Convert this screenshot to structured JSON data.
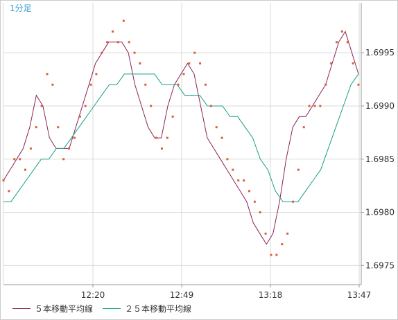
{
  "timeframe_label": "1分足",
  "colors": {
    "ma5": "#8b2252",
    "ma25": "#16a085",
    "points": "#d9603b",
    "grid": "#d9d9d9",
    "axis": "#999999"
  },
  "chart_data": {
    "type": "line",
    "title": "",
    "xlabel": "",
    "ylabel": "",
    "grid": true,
    "legend": "bottom-left",
    "x_ticks": [
      "12:20",
      "12:49",
      "13:18",
      "13:47"
    ],
    "y_ticks": [
      "1.6975",
      "1.6980",
      "1.6985",
      "1.6990",
      "1.6995"
    ],
    "ylim": [
      1.69732,
      1.69997
    ],
    "series": [
      {
        "name": "５本移動平均線",
        "style": "line",
        "color": "#8b2252",
        "values": [
          1.6983,
          1.6984,
          1.6985,
          1.6986,
          1.6988,
          1.6991,
          1.699,
          1.6987,
          1.6986,
          1.6986,
          1.6986,
          1.6988,
          1.699,
          1.6992,
          1.6994,
          1.6995,
          1.6996,
          1.6996,
          1.6996,
          1.6995,
          1.6992,
          1.699,
          1.6988,
          1.6987,
          1.6987,
          1.699,
          1.6992,
          1.6993,
          1.6994,
          1.6993,
          1.699,
          1.6987,
          1.6986,
          1.6985,
          1.6984,
          1.6983,
          1.6982,
          1.6981,
          1.6979,
          1.6978,
          1.6977,
          1.6978,
          1.6981,
          1.6985,
          1.6988,
          1.6989,
          1.6989,
          1.699,
          1.6991,
          1.6992,
          1.6994,
          1.6996,
          1.6997,
          1.6995,
          1.6993
        ]
      },
      {
        "name": "２５本移動平均線",
        "style": "line",
        "color": "#16a085",
        "values": [
          1.6981,
          1.6981,
          1.6982,
          1.6983,
          1.6984,
          1.6985,
          1.6985,
          1.6986,
          1.6986,
          1.6987,
          1.6988,
          1.6989,
          1.699,
          1.6991,
          1.6992,
          1.6992,
          1.6993,
          1.6993,
          1.6993,
          1.6993,
          1.6993,
          1.6992,
          1.6992,
          1.6992,
          1.6991,
          1.6991,
          1.6991,
          1.699,
          1.699,
          1.699,
          1.6989,
          1.6989,
          1.6988,
          1.6987,
          1.6985,
          1.6984,
          1.6982,
          1.6981,
          1.6981,
          1.6981,
          1.6982,
          1.6983,
          1.6984,
          1.6986,
          1.6988,
          1.699,
          1.6992,
          1.6993
        ]
      },
      {
        "name": "",
        "style": "points",
        "color": "#d9603b",
        "values": [
          1.6983,
          1.6982,
          1.6985,
          1.6985,
          1.6984,
          1.6986,
          1.6988,
          1.699,
          1.6993,
          1.6992,
          1.6988,
          1.6985,
          1.6986,
          1.6987,
          1.6989,
          1.699,
          1.6992,
          1.6993,
          1.6995,
          1.6996,
          1.6997,
          1.6996,
          1.6998,
          1.6996,
          1.6995,
          1.6994,
          1.6992,
          1.699,
          1.6987,
          1.6986,
          1.6987,
          1.6989,
          1.6992,
          1.6993,
          1.6994,
          1.6995,
          1.6994,
          1.6992,
          1.699,
          1.6988,
          1.6987,
          1.6985,
          1.6984,
          1.6983,
          1.6983,
          1.6982,
          1.6981,
          1.698,
          1.6978,
          1.6976,
          1.6976,
          1.6977,
          1.6978,
          1.6981,
          1.6984,
          1.6988,
          1.699,
          1.699,
          1.699,
          1.6992,
          1.6994,
          1.6996,
          1.6997,
          1.6996,
          1.6994,
          1.6992
        ]
      }
    ]
  }
}
